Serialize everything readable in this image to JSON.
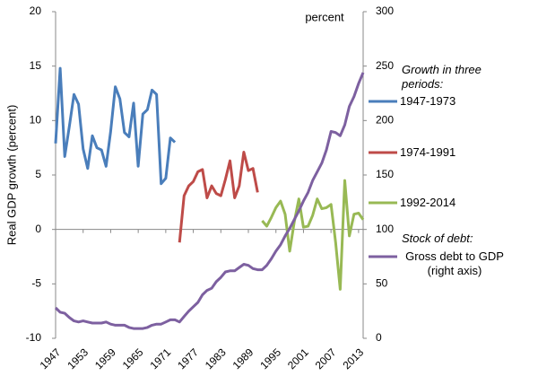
{
  "chart_data": {
    "type": "line",
    "y_label": "Real GDP growth (percent)",
    "annotations": [
      "percent",
      "Growth in three periods:",
      "Stock of debt:"
    ],
    "x": [
      1947,
      1948,
      1949,
      1950,
      1951,
      1952,
      1953,
      1954,
      1955,
      1956,
      1957,
      1958,
      1959,
      1960,
      1961,
      1962,
      1963,
      1964,
      1965,
      1966,
      1967,
      1968,
      1969,
      1970,
      1971,
      1972,
      1973,
      1974,
      1975,
      1976,
      1977,
      1978,
      1979,
      1980,
      1981,
      1982,
      1983,
      1984,
      1985,
      1986,
      1987,
      1988,
      1989,
      1990,
      1991,
      1992,
      1993,
      1994,
      1995,
      1996,
      1997,
      1998,
      1999,
      2000,
      2001,
      2002,
      2003,
      2004,
      2005,
      2006,
      2007,
      2008,
      2009,
      2010,
      2011,
      2012,
      2013,
      2014
    ],
    "xlim": [
      1947,
      2014
    ],
    "xticks": [
      1947,
      1953,
      1959,
      1965,
      1971,
      1977,
      1983,
      1989,
      1995,
      2001,
      2007,
      2013
    ],
    "ylim": [
      -10,
      20
    ],
    "yticks": [
      -10,
      -5,
      0,
      5,
      10,
      15,
      20
    ],
    "y2lim": [
      0,
      300
    ],
    "y2ticks": [
      0,
      50,
      100,
      150,
      200,
      250,
      300
    ],
    "series": [
      {
        "name": "1947-1973",
        "color": "#4a7ebb",
        "values": [
          7.9,
          14.8,
          6.7,
          9.5,
          12.4,
          11.5,
          7.4,
          5.6,
          8.6,
          7.5,
          7.3,
          5.8,
          9.0,
          13.1,
          12.0,
          8.9,
          8.5,
          11.6,
          5.8,
          10.6,
          11.0,
          12.8,
          12.4,
          4.2,
          4.7,
          8.4,
          8.0,
          null,
          null,
          null,
          null,
          null,
          null,
          null,
          null,
          null,
          null,
          null,
          null,
          null,
          null,
          null,
          null,
          null,
          null,
          null,
          null,
          null,
          null,
          null,
          null,
          null,
          null,
          null,
          null,
          null,
          null,
          null,
          null,
          null,
          null,
          null,
          null,
          null,
          null,
          null,
          null,
          null
        ]
      },
      {
        "name": "1974-1991",
        "color": "#be4b48",
        "values": [
          null,
          null,
          null,
          null,
          null,
          null,
          null,
          null,
          null,
          null,
          null,
          null,
          null,
          null,
          null,
          null,
          null,
          null,
          null,
          null,
          null,
          null,
          null,
          null,
          null,
          null,
          null,
          -1.2,
          3.1,
          4.0,
          4.4,
          5.3,
          5.5,
          2.9,
          4.0,
          3.3,
          3.1,
          4.6,
          6.3,
          2.9,
          4.0,
          7.1,
          5.4,
          5.6,
          3.4,
          null,
          null,
          null,
          null,
          null,
          null,
          null,
          null,
          null,
          null,
          null,
          null,
          null,
          null,
          null,
          null,
          null,
          null,
          null,
          null,
          null,
          null,
          null
        ]
      },
      {
        "name": "1992-2014",
        "color": "#98b954",
        "values": [
          null,
          null,
          null,
          null,
          null,
          null,
          null,
          null,
          null,
          null,
          null,
          null,
          null,
          null,
          null,
          null,
          null,
          null,
          null,
          null,
          null,
          null,
          null,
          null,
          null,
          null,
          null,
          null,
          null,
          null,
          null,
          null,
          null,
          null,
          null,
          null,
          null,
          null,
          null,
          null,
          null,
          null,
          null,
          null,
          null,
          0.8,
          0.3,
          1.1,
          2.0,
          2.6,
          1.4,
          -2.0,
          0.7,
          2.8,
          0.2,
          0.3,
          1.3,
          2.8,
          1.9,
          2.0,
          2.3,
          -1.2,
          -5.5,
          4.5,
          -0.6,
          1.4,
          1.5,
          0.9
        ]
      },
      {
        "name": "Gross debt to GDP (right axis)",
        "color": "#7d60a0",
        "axis": "y2",
        "values": [
          28,
          24,
          23,
          19,
          16,
          15,
          16,
          15,
          14,
          14,
          14,
          15,
          13,
          12,
          12,
          12,
          10,
          9,
          9,
          9,
          10,
          12,
          13,
          13,
          15,
          17,
          17,
          15,
          20,
          25,
          29,
          33,
          40,
          44,
          46,
          52,
          56,
          61,
          62,
          62,
          65,
          68,
          67,
          64,
          63,
          63,
          67,
          73,
          80,
          86,
          94,
          101,
          109,
          117,
          126,
          134,
          145,
          153,
          161,
          173,
          190,
          189,
          186,
          196,
          213,
          222,
          234,
          244
        ]
      }
    ]
  }
}
